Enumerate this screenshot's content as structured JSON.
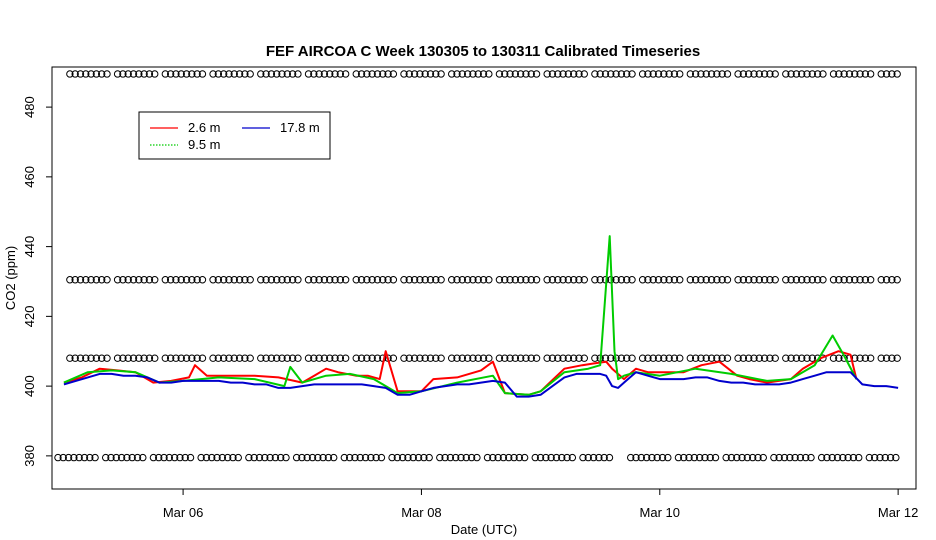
{
  "chart_data": {
    "type": "line",
    "title": "FEF AIRCOA C  Week 130305 to 130311  Calibrated Timeseries",
    "xlabel": "Date (UTC)",
    "ylabel": "CO2 (ppm)",
    "x_unit": "day of March 2013 (UTC)",
    "xlim": [
      4.9,
      12.15
    ],
    "ylim": [
      370.5,
      491.5
    ],
    "xticks": [
      {
        "value": 6,
        "label": "Mar 06"
      },
      {
        "value": 8,
        "label": "Mar 08"
      },
      {
        "value": 10,
        "label": "Mar 10"
      },
      {
        "value": 12,
        "label": "Mar 12"
      }
    ],
    "yticks": [
      380,
      400,
      420,
      440,
      460,
      480
    ],
    "legend": {
      "position": "top-left",
      "entries": [
        {
          "name": "2.6 m",
          "color": "#ff0000"
        },
        {
          "name": "9.5 m",
          "color": "#00cc00"
        },
        {
          "name": "17.8 m",
          "color": "#0000cc"
        }
      ]
    },
    "series": [
      {
        "name": "2.6 m",
        "color": "#ff0000",
        "x": [
          5.0,
          5.15,
          5.3,
          5.45,
          5.6,
          5.75,
          5.9,
          6.05,
          6.1,
          6.2,
          6.4,
          6.6,
          6.8,
          7.0,
          7.1,
          7.2,
          7.3,
          7.45,
          7.55,
          7.65,
          7.7,
          7.8,
          8.0,
          8.1,
          8.3,
          8.5,
          8.6,
          8.7,
          8.9,
          9.0,
          9.2,
          9.35,
          9.45,
          9.55,
          9.6,
          9.7,
          9.8,
          9.9,
          10.05,
          10.2,
          10.35,
          10.5,
          10.65,
          10.75,
          10.9,
          11.1,
          11.2,
          11.35,
          11.5,
          11.6,
          11.65
        ],
        "y": [
          401,
          402.5,
          405,
          404.5,
          404,
          401,
          401.5,
          402.5,
          406,
          403,
          403,
          403,
          402.5,
          401,
          403,
          405,
          404,
          403,
          403,
          402,
          410,
          398.5,
          398.5,
          402,
          402.5,
          404.5,
          407,
          398,
          397.5,
          398.5,
          405,
          406,
          406.5,
          407,
          405,
          402,
          405,
          404,
          404,
          404,
          406,
          407,
          403,
          402,
          401,
          402,
          405,
          408,
          410,
          409,
          402
        ]
      },
      {
        "name": "9.5 m",
        "color": "#00cc00",
        "x": [
          5.0,
          5.2,
          5.4,
          5.6,
          5.8,
          6.0,
          6.3,
          6.6,
          6.85,
          6.9,
          7.0,
          7.2,
          7.4,
          7.6,
          7.8,
          8.0,
          8.3,
          8.6,
          8.7,
          8.9,
          9.0,
          9.2,
          9.4,
          9.5,
          9.58,
          9.62,
          9.65,
          9.7,
          9.8,
          10.0,
          10.3,
          10.6,
          10.9,
          11.1,
          11.3,
          11.45,
          11.55,
          11.65
        ],
        "y": [
          401,
          404,
          404.5,
          404,
          401,
          401.5,
          402.5,
          402,
          400,
          405.5,
          401,
          403,
          403.5,
          402,
          398,
          398.5,
          401,
          403,
          398,
          397.5,
          398.5,
          404,
          405,
          406,
          443,
          410,
          402,
          403,
          404,
          403,
          405,
          403.5,
          401.5,
          402,
          406,
          414.5,
          408.5,
          402
        ]
      },
      {
        "name": "17.8 m",
        "color": "#0000cc",
        "x": [
          5.0,
          5.1,
          5.2,
          5.3,
          5.4,
          5.5,
          5.6,
          5.7,
          5.8,
          5.9,
          6.0,
          6.1,
          6.2,
          6.3,
          6.4,
          6.5,
          6.6,
          6.7,
          6.8,
          6.9,
          7.0,
          7.1,
          7.2,
          7.3,
          7.4,
          7.5,
          7.6,
          7.7,
          7.8,
          7.9,
          8.0,
          8.1,
          8.2,
          8.3,
          8.4,
          8.5,
          8.6,
          8.7,
          8.8,
          8.9,
          9.0,
          9.1,
          9.2,
          9.3,
          9.4,
          9.5,
          9.55,
          9.6,
          9.65,
          9.7,
          9.8,
          9.9,
          10.0,
          10.1,
          10.2,
          10.3,
          10.4,
          10.5,
          10.6,
          10.7,
          10.8,
          10.9,
          11.0,
          11.1,
          11.2,
          11.3,
          11.4,
          11.5,
          11.6,
          11.7,
          11.8,
          11.9,
          12.0
        ],
        "y": [
          400.5,
          401.5,
          402.5,
          403.5,
          403.5,
          403,
          403,
          402.5,
          401,
          401,
          401.5,
          401.5,
          401.5,
          401.5,
          401,
          401,
          400.5,
          400.5,
          399.5,
          399.5,
          400,
          400.5,
          400.5,
          400.5,
          400.5,
          400.5,
          400,
          399.5,
          397.5,
          397.5,
          398.5,
          399.5,
          400,
          400.5,
          400.5,
          401,
          401.5,
          401,
          397,
          397,
          397.5,
          400,
          402.5,
          403.5,
          403.5,
          403.5,
          403,
          400,
          399.5,
          401,
          404,
          403,
          402,
          402,
          402,
          402.5,
          402.5,
          401.5,
          401,
          401,
          400.5,
          400.5,
          400.5,
          401,
          402,
          403,
          404,
          404,
          404,
          400.5,
          400,
          400,
          399.5
        ]
      }
    ],
    "markers": {
      "shape": "open-circle",
      "color": "#000000",
      "rows": [
        {
          "y": 489.5,
          "x_start": 5.05,
          "x_end": 12.0,
          "gaps": []
        },
        {
          "y": 430.5,
          "x_start": 5.05,
          "x_end": 12.0,
          "gaps": []
        },
        {
          "y": 408,
          "x_start": 5.05,
          "x_end": 12.0,
          "gaps": []
        },
        {
          "y": 379.5,
          "x_start": 4.95,
          "x_end": 12.0,
          "gaps": [
            [
              9.6,
              9.7
            ]
          ]
        }
      ]
    }
  }
}
